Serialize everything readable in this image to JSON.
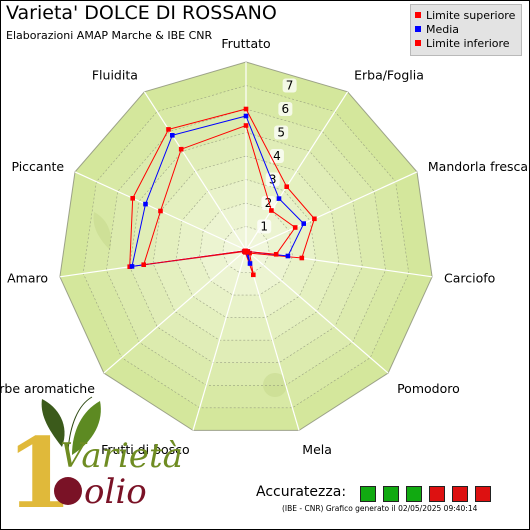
{
  "header": {
    "title": "Varieta' DOLCE DI ROSSANO",
    "subtitle": "Elaborazioni AMAP Marche & IBE CNR"
  },
  "legend": {
    "items": [
      {
        "label": "Limite superiore",
        "color": "#ff0000"
      },
      {
        "label": "Media",
        "color": "#0000ff"
      },
      {
        "label": "Limite inferiore",
        "color": "#ff0000"
      }
    ]
  },
  "logo": {
    "text_top": "Varietà",
    "text_bottom": "olio",
    "numeral": "1"
  },
  "accuracy": {
    "label": "Accuratezza:",
    "boxes": [
      "#11aa11",
      "#11aa11",
      "#11aa11",
      "#dd1111",
      "#dd1111",
      "#dd1111"
    ]
  },
  "footer": {
    "text": "(IBE - CNR) Grafico generato il 02/05/2025 09:40:14"
  },
  "colors": {
    "plot_fill": "#d4e79c",
    "plot_fill_inner": "#eef5d6",
    "grid": "#8a8f78",
    "upper": "#ff0000",
    "mean": "#0000ff",
    "lower": "#ff0000"
  },
  "chart_data": {
    "type": "radar",
    "title": "Varieta' DOLCE DI ROSSANO",
    "subtitle": "Elaborazioni AMAP Marche & IBE CNR",
    "categories": [
      "Fruttato",
      "Erba/Foglia",
      "Mandorla fresca",
      "Carciofo",
      "Pomodoro",
      "Mela",
      "Frutti di bosco",
      "Erbe aromatiche",
      "Amaro",
      "Piccante",
      "Fluidita"
    ],
    "rlim": [
      0,
      8
    ],
    "tick_labels": [
      "1",
      "2",
      "3",
      "4",
      "5",
      "6",
      "7"
    ],
    "grid": true,
    "legend_position": "top-right",
    "series": [
      {
        "name": "Limite superiore",
        "color": "#ff0000",
        "values": [
          6.0,
          3.2,
          3.2,
          2.4,
          0.2,
          1.1,
          0.1,
          0.1,
          5.0,
          5.3,
          6.1
        ]
      },
      {
        "name": "Media",
        "color": "#0000ff",
        "values": [
          5.7,
          2.6,
          2.7,
          1.8,
          0.1,
          0.6,
          0.05,
          0.05,
          4.9,
          4.7,
          5.8
        ]
      },
      {
        "name": "Limite inferiore",
        "color": "#ff0000",
        "values": [
          5.3,
          2.0,
          2.3,
          1.3,
          0.1,
          0.1,
          0.05,
          0.05,
          4.4,
          4.0,
          5.1
        ]
      }
    ]
  }
}
